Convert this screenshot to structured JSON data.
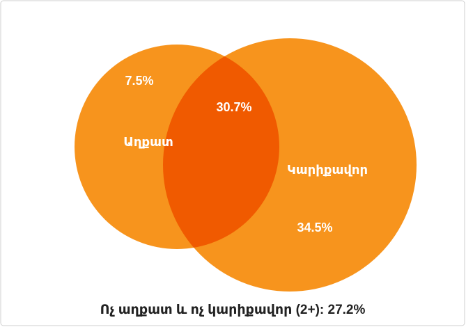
{
  "chart_data": {
    "type": "venn",
    "sets": [
      {
        "name": "Աղքատ",
        "color": "#f7941d"
      },
      {
        "name": "Կարիքավոր",
        "color": "#f7941d"
      }
    ],
    "regions": [
      "left",
      "both",
      "right"
    ],
    "values": [
      7.5,
      30.7,
      34.5
    ],
    "value_labels": [
      "7.5%",
      "30.7%",
      "34.5%"
    ],
    "overlap_color": "#f05a00",
    "outside": {
      "value": 27.2,
      "label": "Ոչ աղքատ և ոչ կարիքավոր (2+): 27.2%"
    }
  }
}
